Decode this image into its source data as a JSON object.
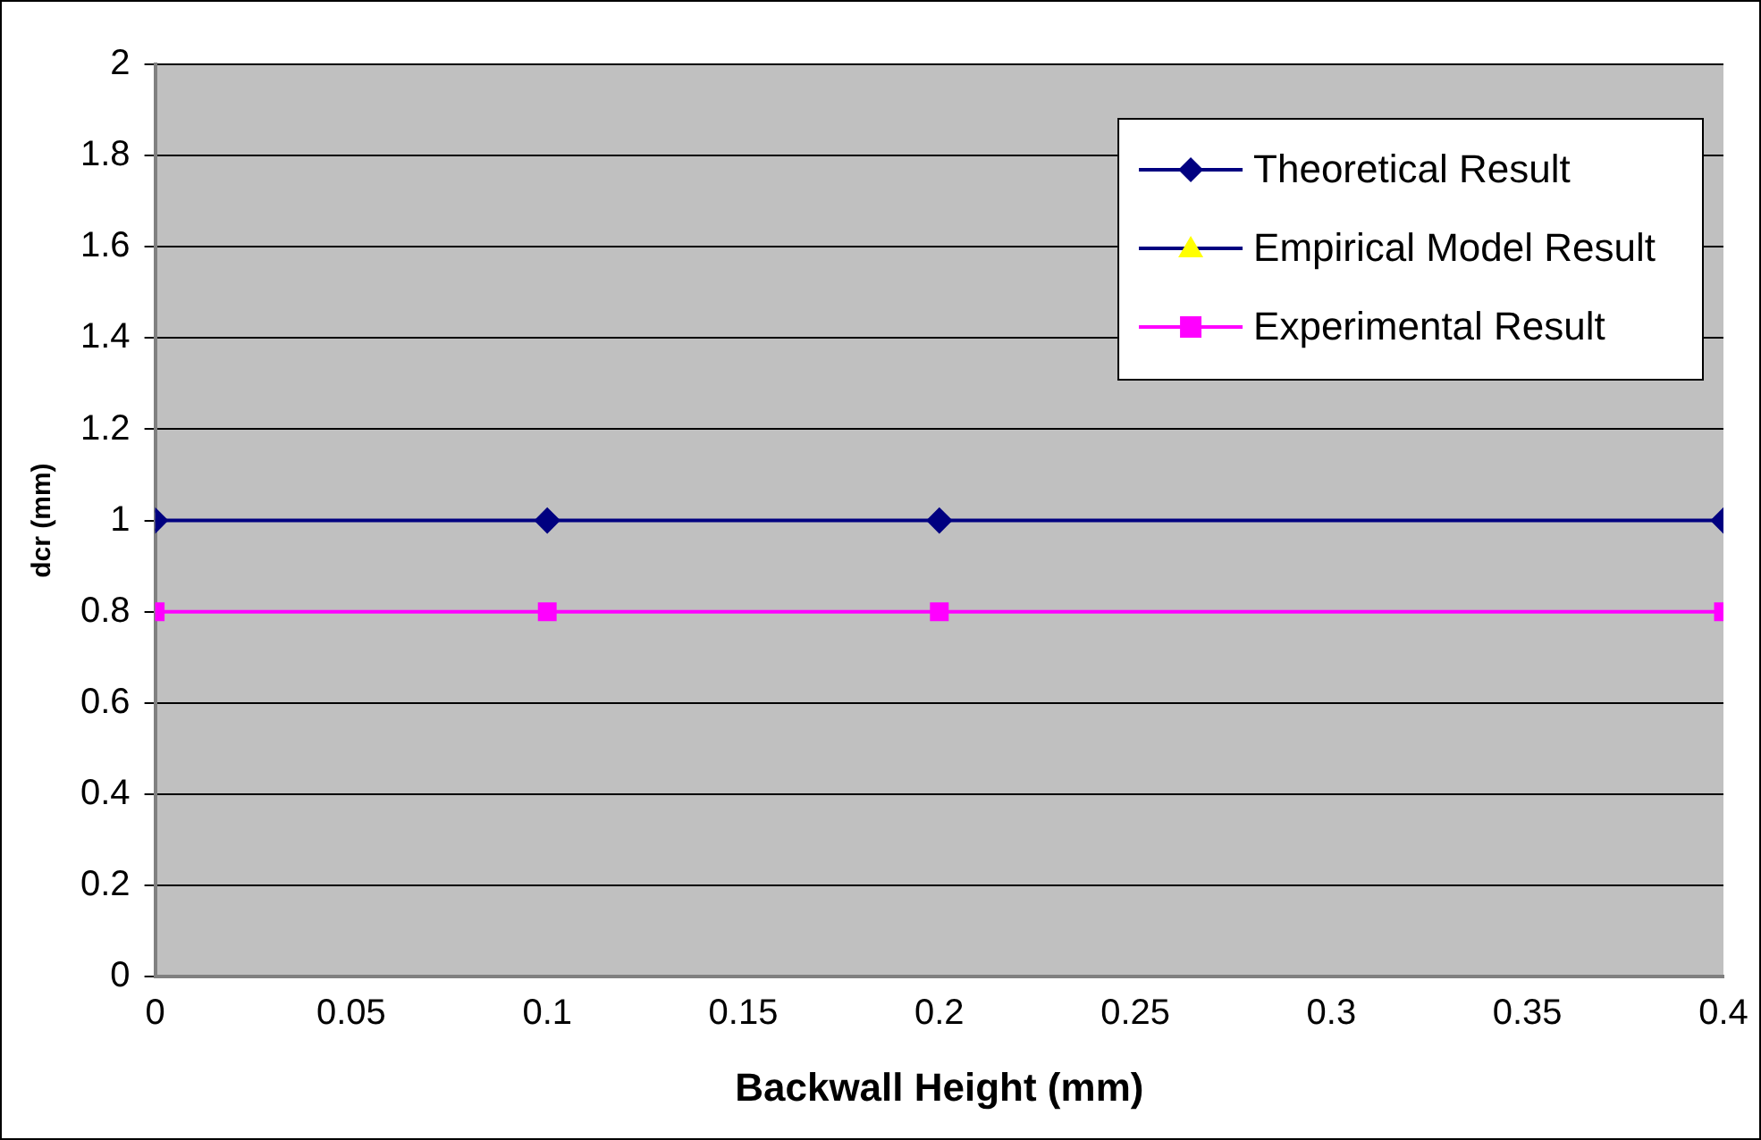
{
  "chart_data": {
    "type": "line",
    "xlabel": "Backwall Height (mm)",
    "ylabel": "dcr (mm)",
    "x": [
      0,
      0.1,
      0.2,
      0.4
    ],
    "series": [
      {
        "name": "Theoretical Result",
        "color": "#000080",
        "marker": "diamond",
        "values": [
          1,
          1,
          1,
          1
        ]
      },
      {
        "name": "Empirical Model Result",
        "color": "#ffff00",
        "marker": "triangle",
        "values": [
          null,
          null,
          null,
          null
        ]
      },
      {
        "name": "Experimental Result",
        "color": "#ff00ff",
        "marker": "square",
        "values": [
          0.8,
          0.8,
          0.8,
          0.8
        ]
      }
    ],
    "xlim": [
      0,
      0.4
    ],
    "xticks": [
      0,
      0.05,
      0.1,
      0.15,
      0.2,
      0.25,
      0.3,
      0.35,
      0.4
    ],
    "ylim": [
      0,
      2
    ],
    "yticks": [
      0,
      0.2,
      0.4,
      0.6,
      0.8,
      1,
      1.2,
      1.4,
      1.6,
      1.8,
      2
    ],
    "grid": "y",
    "legend": "top right",
    "line_style": "solid"
  }
}
